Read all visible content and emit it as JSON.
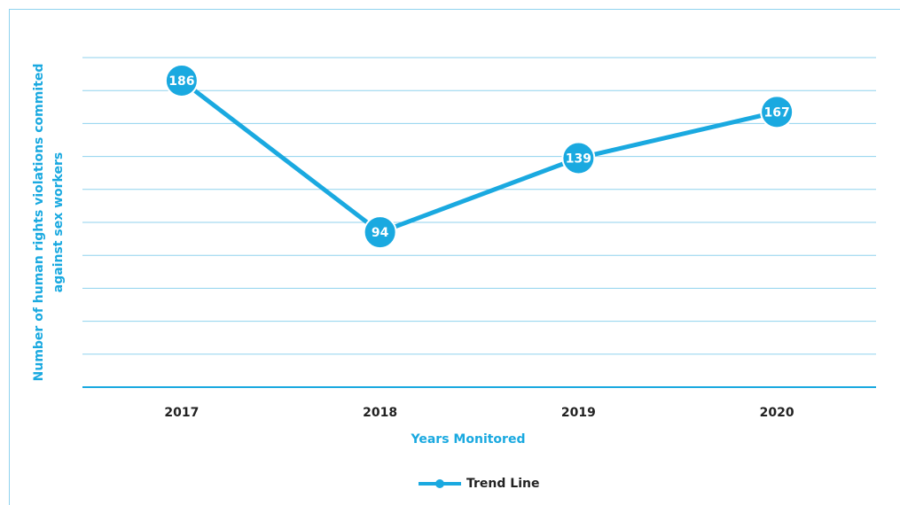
{
  "chart_data": {
    "type": "line",
    "y_label": [
      "Number of human rights violations commited",
      "against sex workers"
    ],
    "x_label": "Years Monitored",
    "categories": [
      "2017",
      "2018",
      "2019",
      "2020"
    ],
    "series": [
      {
        "name": "Trend Line",
        "color": "#1aa9e0",
        "values": [
          186,
          94,
          139,
          167
        ]
      }
    ],
    "ylim": [
      0,
      200
    ],
    "yticks": [
      0,
      20,
      40,
      60,
      80,
      100,
      120,
      140,
      160,
      180,
      200
    ],
    "grid": true,
    "legend": "bottom"
  }
}
